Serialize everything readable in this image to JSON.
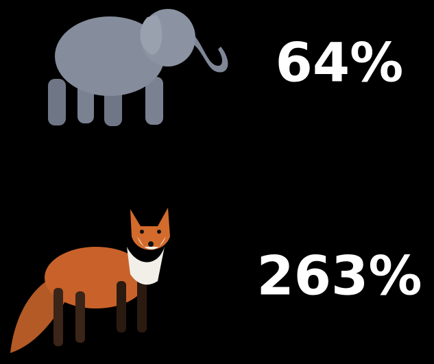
{
  "items": [
    {
      "label": "64%"
    },
    {
      "label": "263%"
    }
  ]
}
